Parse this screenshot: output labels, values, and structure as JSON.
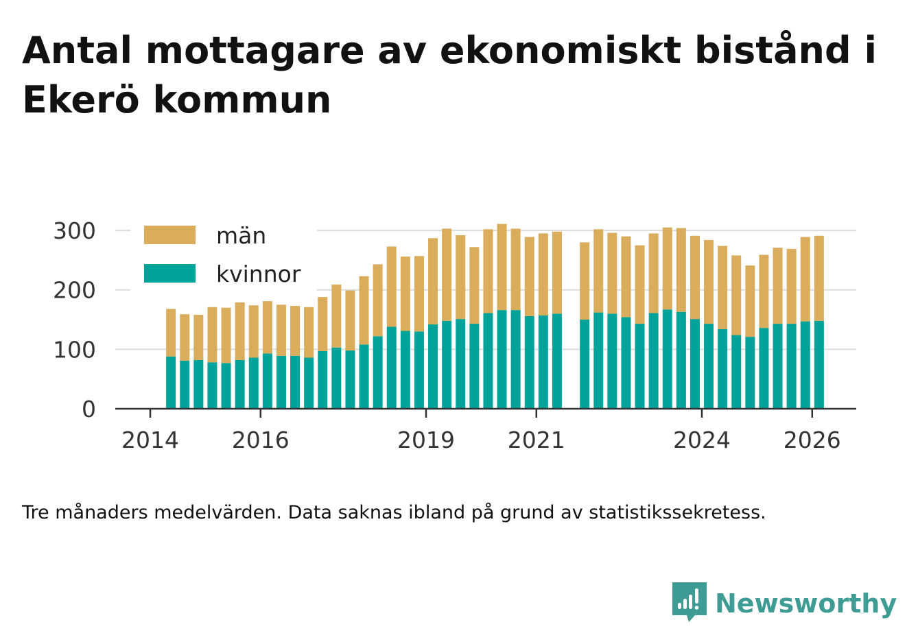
{
  "title": "Antal mottagare av ekonomiskt bistånd i Ekerö kommun",
  "note": "Tre månaders medelvärden. Data saknas ibland på grund av statistikssekretess.",
  "brand": {
    "name": "Newsworthy",
    "icon": "newsworthy-logo-icon",
    "color": "#3f9c94"
  },
  "chart_data": {
    "type": "bar",
    "stacked": true,
    "x_unit": "quarter",
    "x": [
      "2014Q2",
      "2014Q3",
      "2014Q4",
      "2015Q1",
      "2015Q2",
      "2015Q3",
      "2015Q4",
      "2016Q1",
      "2016Q2",
      "2016Q3",
      "2016Q4",
      "2017Q1",
      "2017Q2",
      "2017Q3",
      "2017Q4",
      "2018Q1",
      "2018Q2",
      "2018Q3",
      "2018Q4",
      "2019Q1",
      "2019Q2",
      "2019Q3",
      "2019Q4",
      "2020Q1",
      "2020Q2",
      "2020Q3",
      "2020Q4",
      "2021Q1",
      "2021Q2",
      "2021Q3",
      "2021Q4",
      "2022Q1",
      "2022Q2",
      "2022Q3",
      "2022Q4",
      "2023Q1",
      "2023Q2",
      "2023Q3",
      "2023Q4",
      "2024Q1",
      "2024Q2",
      "2024Q3",
      "2024Q4",
      "2025Q1",
      "2025Q2",
      "2025Q3",
      "2025Q4",
      "2026Q1"
    ],
    "series": [
      {
        "name": "kvinnor",
        "color": "#00a39a",
        "values": [
          88,
          81,
          82,
          78,
          77,
          82,
          86,
          93,
          89,
          89,
          86,
          97,
          103,
          98,
          108,
          122,
          138,
          131,
          130,
          142,
          148,
          151,
          143,
          161,
          166,
          166,
          156,
          157,
          160,
          null,
          150,
          162,
          160,
          154,
          143,
          161,
          167,
          163,
          151,
          143,
          134,
          124,
          121,
          136,
          143,
          143,
          147,
          148
        ]
      },
      {
        "name": "män",
        "color": "#d9ad5b",
        "values": [
          80,
          78,
          76,
          93,
          93,
          97,
          88,
          88,
          86,
          84,
          85,
          91,
          106,
          101,
          115,
          121,
          135,
          125,
          127,
          145,
          155,
          141,
          129,
          141,
          145,
          137,
          133,
          138,
          138,
          null,
          130,
          140,
          136,
          136,
          132,
          134,
          138,
          141,
          140,
          141,
          140,
          134,
          120,
          123,
          128,
          126,
          142,
          143
        ]
      }
    ],
    "xticks": [
      "2014",
      "2016",
      "2019",
      "2021",
      "2024",
      "2026"
    ],
    "yticks": [
      0,
      100,
      200,
      300
    ],
    "ylim": [
      0,
      320
    ],
    "grid": true,
    "legend": "top-left",
    "xlabel": "",
    "ylabel": ""
  }
}
